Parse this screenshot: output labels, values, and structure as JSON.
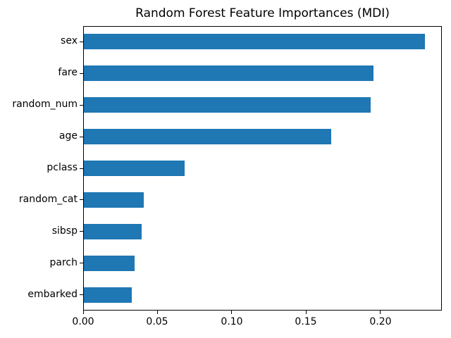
{
  "chart_data": {
    "type": "bar",
    "orientation": "horizontal",
    "title": "Random Forest Feature Importances (MDI)",
    "categories": [
      "sex",
      "fare",
      "random_num",
      "age",
      "pclass",
      "random_cat",
      "sibsp",
      "parch",
      "embarked"
    ],
    "values": [
      0.2294,
      0.1947,
      0.1931,
      0.1665,
      0.0678,
      0.0405,
      0.0389,
      0.0343,
      0.0321
    ],
    "xlabel": "",
    "ylabel": "",
    "xlim": [
      0,
      0.2413
    ],
    "xticks": [
      0,
      0.05,
      0.1,
      0.15,
      0.2
    ],
    "xtick_labels": [
      "0.00",
      "0.05",
      "0.10",
      "0.15",
      "0.20"
    ],
    "bar_color": "#1f77b4",
    "bar_fraction": 0.5,
    "grid": false,
    "legend_position": "none"
  }
}
